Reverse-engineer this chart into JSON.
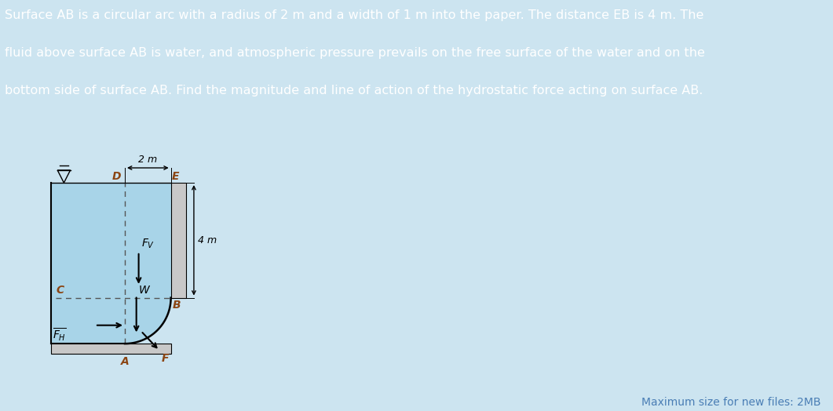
{
  "bg_color": "#cce4f0",
  "header_bg": "#3d7fc1",
  "header_text_line1": "Surface AB is a circular arc with a radius of 2 m and a width of 1 m into the paper. The distance EB is 4 m. The",
  "header_text_line2": "fluid above surface AB is water, and atmospheric pressure prevails on the free surface of the water and on the",
  "header_text_line3": "bottom side of surface AB. Find the magnitude and line of action of the hydrostatic force acting on surface AB.",
  "header_text_color": "#ffffff",
  "header_fontsize": 11.5,
  "diagram_bg": "#ebebeb",
  "water_color": "#a8d4e8",
  "col_color": "#c8c8c8",
  "slab_color": "#c8c8c8",
  "label_color": "#8B4513",
  "footer_text": "Maximum size for new files: 2MB",
  "footer_color": "#4a7eb5",
  "footer_fontsize": 10
}
